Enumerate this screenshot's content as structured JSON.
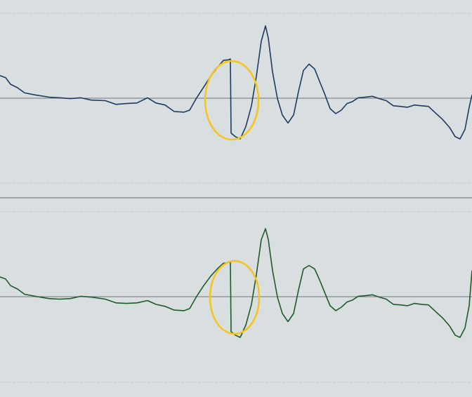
{
  "chart_data": [
    {
      "type": "line",
      "title": "",
      "xlabel": "",
      "ylabel": "",
      "grid": false,
      "ylim": [
        -1,
        1
      ],
      "xlim": [
        0,
        672
      ],
      "series": [
        {
          "color": "#1f3a5f",
          "x": [
            0,
            8,
            15,
            25,
            35,
            50,
            70,
            85,
            100,
            115,
            130,
            150,
            165,
            180,
            195,
            210,
            222,
            235,
            248,
            262,
            270,
            280,
            290,
            300,
            310,
            318,
            325,
            328,
            329,
            335,
            342,
            350,
            358,
            365,
            372,
            378,
            382,
            388,
            395,
            402,
            410,
            418,
            425,
            432,
            440,
            448,
            455,
            462,
            470,
            478,
            486,
            494,
            502,
            510,
            520,
            530,
            540,
            550,
            560,
            570,
            580,
            590,
            600,
            610,
            620,
            630,
            640,
            648,
            655,
            662,
            668,
            672
          ],
          "values": [
            0.16,
            0.14,
            0.1,
            0.07,
            0.04,
            0.02,
            0.01,
            0.0,
            0.0,
            0.0,
            -0.01,
            -0.02,
            -0.04,
            -0.04,
            -0.03,
            0.0,
            -0.03,
            -0.05,
            -0.09,
            -0.1,
            -0.08,
            0.0,
            0.08,
            0.15,
            0.22,
            0.26,
            0.27,
            0.27,
            -0.24,
            -0.27,
            -0.28,
            -0.2,
            -0.05,
            0.15,
            0.4,
            0.5,
            0.42,
            0.18,
            0.0,
            -0.12,
            -0.17,
            -0.12,
            0.05,
            0.19,
            0.24,
            0.2,
            0.12,
            0.03,
            -0.07,
            -0.11,
            -0.08,
            -0.04,
            -0.02,
            0.0,
            0.01,
            0.01,
            0.0,
            -0.02,
            -0.05,
            -0.06,
            -0.06,
            -0.05,
            -0.05,
            -0.06,
            -0.1,
            -0.15,
            -0.2,
            -0.27,
            -0.28,
            -0.22,
            -0.06,
            0.02
          ]
        },
        {
          "color": "#1f5a2a",
          "x": [
            0,
            8,
            15,
            25,
            35,
            50,
            70,
            85,
            100,
            115,
            130,
            150,
            165,
            180,
            195,
            210,
            222,
            235,
            248,
            262,
            270,
            280,
            290,
            300,
            310,
            318,
            325,
            328,
            329,
            335,
            342,
            350,
            358,
            365,
            372,
            378,
            382,
            388,
            395,
            402,
            410,
            418,
            425,
            432,
            440,
            448,
            455,
            462,
            470,
            478,
            486,
            494,
            502,
            510,
            520,
            530,
            540,
            550,
            560,
            570,
            580,
            590,
            600,
            610,
            620,
            630,
            640,
            648,
            655,
            662,
            668,
            672
          ],
          "values": [
            0.14,
            0.12,
            0.08,
            0.05,
            0.02,
            0.0,
            -0.01,
            -0.02,
            -0.01,
            0.0,
            0.0,
            -0.02,
            -0.04,
            -0.05,
            -0.04,
            -0.03,
            -0.05,
            -0.07,
            -0.09,
            -0.1,
            -0.08,
            0.0,
            0.08,
            0.14,
            0.2,
            0.23,
            0.24,
            0.24,
            -0.24,
            -0.27,
            -0.28,
            -0.2,
            -0.05,
            0.15,
            0.4,
            0.47,
            0.4,
            0.18,
            0.0,
            -0.12,
            -0.17,
            -0.12,
            0.05,
            0.19,
            0.22,
            0.19,
            0.12,
            0.03,
            -0.06,
            -0.1,
            -0.07,
            -0.04,
            -0.02,
            0.0,
            0.01,
            0.01,
            0.0,
            -0.02,
            -0.05,
            -0.06,
            -0.06,
            -0.05,
            -0.05,
            -0.06,
            -0.1,
            -0.15,
            -0.2,
            -0.27,
            -0.28,
            -0.22,
            -0.06,
            0.18
          ]
        }
      ]
    }
  ],
  "annotations": [
    {
      "shape": "ellipse",
      "color": "#f5c518"
    },
    {
      "shape": "ellipse",
      "color": "#f5c518"
    }
  ],
  "colors": {
    "background": "#d9dee1",
    "grid_dotted": "#a9b0b4",
    "zero_line": "#6f7478",
    "panel_divider": "#7d8286"
  }
}
